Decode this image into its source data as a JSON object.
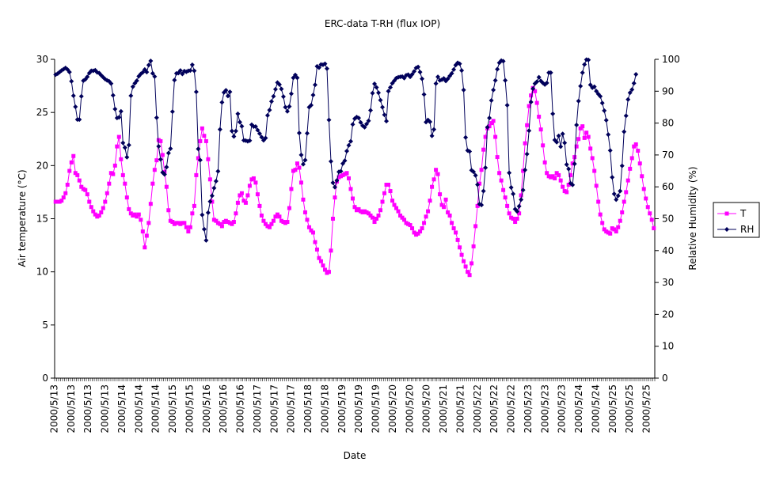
{
  "chart_data": {
    "type": "line",
    "title": "ERC-data T-RH (flux IOP)",
    "xlabel": "Date",
    "ylabel_left": "Air temperature (°C)",
    "ylabel_right": "Relative Humidity (%)",
    "ylim_left": [
      0,
      30
    ],
    "yticks_left": [
      "0",
      "5",
      "10",
      "15",
      "20",
      "25",
      "30"
    ],
    "ylim_right": [
      0,
      100
    ],
    "yticks_right": [
      "0",
      "10",
      "20",
      "30",
      "40",
      "50",
      "60",
      "70",
      "80",
      "90",
      "100"
    ],
    "x_tick_labels": [
      "2000/5/13",
      "2000/5/13",
      "2000/5/13",
      "2000/5/13",
      "2000/5/14",
      "2000/5/14",
      "2000/5/14",
      "2000/5/15",
      "2000/5/15",
      "2000/5/16",
      "2000/5/16",
      "2000/5/16",
      "2000/5/17",
      "2000/5/17",
      "2000/5/17",
      "2000/5/18",
      "2000/5/18",
      "2000/5/19",
      "2000/5/19",
      "2000/5/19",
      "2000/5/20",
      "2000/5/20",
      "2000/5/20",
      "2000/5/21",
      "2000/5/21",
      "2000/5/22",
      "2000/5/22",
      "2000/5/22",
      "2000/5/23",
      "2000/5/23",
      "2000/5/23",
      "2000/5/24",
      "2000/5/24",
      "2000/5/25",
      "2000/5/25",
      "2000/5/25"
    ],
    "grid": false,
    "legend_position": "right",
    "series": [
      {
        "name": "T",
        "axis": "left",
        "color": "#ff00ff",
        "marker": "square",
        "values": [
          16.6,
          16.6,
          16.6,
          16.7,
          17.0,
          17.4,
          18.2,
          19.5,
          20.3,
          20.9,
          19.3,
          19.1,
          18.6,
          18.0,
          17.8,
          17.7,
          17.3,
          16.6,
          16.1,
          15.7,
          15.4,
          15.2,
          15.3,
          15.6,
          16.0,
          16.6,
          17.4,
          18.3,
          19.3,
          19.2,
          20.0,
          21.8,
          22.7,
          20.6,
          19.1,
          18.3,
          17.0,
          15.9,
          15.5,
          15.3,
          15.4,
          15.2,
          15.4,
          14.9,
          13.8,
          12.3,
          13.4,
          14.6,
          16.4,
          18.3,
          19.6,
          20.5,
          22.4,
          22.3,
          21.0,
          19.4,
          18.0,
          15.8,
          14.8,
          14.7,
          14.5,
          14.6,
          14.6,
          14.5,
          14.6,
          14.6,
          14.2,
          13.8,
          14.2,
          15.5,
          16.2,
          19.1,
          20.7,
          22.3,
          23.5,
          22.8,
          22.3,
          20.6,
          18.7,
          16.6,
          14.9,
          14.8,
          14.6,
          14.5,
          14.3,
          14.7,
          14.8,
          14.7,
          14.6,
          14.5,
          14.7,
          15.5,
          16.5,
          17.2,
          17.4,
          16.7,
          16.5,
          17.2,
          18.1,
          18.7,
          18.8,
          18.4,
          17.3,
          16.2,
          15.3,
          14.8,
          14.5,
          14.3,
          14.2,
          14.5,
          14.8,
          15.2,
          15.4,
          15.2,
          14.8,
          14.7,
          14.6,
          14.7,
          16.0,
          17.8,
          19.5,
          19.6,
          20.2,
          19.8,
          18.4,
          16.8,
          15.6,
          14.9,
          14.2,
          13.9,
          13.7,
          12.8,
          12.1,
          11.3,
          11.0,
          10.6,
          10.2,
          9.9,
          10.0,
          12.0,
          15.0,
          17.0,
          18.5,
          18.9,
          19.0,
          19.1,
          19.2,
          19.3,
          18.8,
          17.8,
          16.9,
          16.1,
          15.8,
          15.9,
          15.7,
          15.6,
          15.7,
          15.6,
          15.5,
          15.3,
          15.1,
          14.7,
          15.0,
          15.3,
          15.8,
          16.6,
          17.4,
          18.2,
          18.2,
          17.6,
          16.7,
          16.3,
          16.0,
          15.7,
          15.3,
          15.1,
          14.9,
          14.6,
          14.5,
          14.4,
          14.1,
          13.7,
          13.5,
          13.6,
          13.8,
          14.1,
          14.6,
          15.2,
          15.7,
          16.7,
          18.0,
          18.7,
          19.6,
          19.2,
          17.3,
          16.3,
          16.1,
          16.8,
          15.6,
          15.3,
          14.6,
          14.1,
          13.7,
          13.0,
          12.3,
          11.6,
          11.0,
          10.5,
          10.0,
          9.7,
          10.8,
          12.4,
          14.3,
          16.2,
          18.3,
          19.6,
          21.5,
          22.7,
          23.5,
          23.7,
          24.0,
          24.2,
          22.7,
          20.8,
          19.3,
          18.6,
          17.7,
          17.0,
          16.2,
          15.5,
          15.1,
          15.0,
          14.7,
          15.0,
          15.5,
          17.2,
          19.5,
          22.1,
          23.8,
          25.6,
          26.6,
          27.3,
          27.0,
          25.9,
          24.6,
          23.4,
          21.9,
          20.3,
          19.3,
          19.0,
          18.9,
          19.0,
          18.8,
          19.3,
          19.1,
          18.6,
          18.0,
          17.6,
          17.5,
          18.2,
          19.1,
          20.2,
          20.8,
          21.8,
          22.5,
          23.5,
          23.7,
          22.6,
          23.1,
          22.7,
          21.6,
          20.7,
          19.5,
          18.1,
          16.6,
          15.4,
          14.6,
          14.0,
          13.8,
          13.7,
          13.6,
          14.1,
          14.0,
          13.8,
          14.2,
          14.8,
          15.6,
          16.6,
          17.5,
          18.6,
          19.7,
          20.7,
          21.8,
          22.0,
          21.4,
          20.2,
          19.0,
          17.8,
          16.9,
          16.1,
          15.5,
          14.9,
          14.1
        ]
      },
      {
        "name": "RH",
        "axis": "right",
        "color": "#00005a",
        "marker": "diamond",
        "values": [
          95.2,
          95.5,
          96.0,
          96.5,
          96.9,
          97.3,
          96.8,
          96.0,
          93.1,
          88.6,
          85.1,
          81.1,
          81.1,
          88.4,
          93.3,
          93.7,
          94.5,
          95.7,
          96.4,
          96.4,
          96.6,
          95.9,
          95.7,
          95.0,
          94.4,
          93.8,
          93.4,
          93.1,
          92.4,
          88.7,
          84.4,
          81.6,
          81.8,
          83.7,
          73.8,
          72.3,
          69.3,
          73.1,
          88.6,
          91.4,
          92.5,
          93.3,
          94.7,
          95.4,
          95.9,
          96.8,
          96.0,
          98.2,
          99.5,
          95.6,
          94.6,
          81.7,
          72.7,
          68.6,
          64.5,
          63.9,
          66.2,
          70.6,
          72.0,
          83.6,
          93.5,
          95.6,
          95.7,
          96.5,
          95.4,
          96.3,
          96.1,
          96.4,
          96.5,
          98.3,
          96.4,
          89.8,
          71.9,
          68.4,
          51.2,
          46.7,
          43.2,
          51.9,
          55.4,
          57.2,
          59.6,
          61.8,
          64.9,
          78.0,
          86.5,
          89.6,
          90.3,
          88.5,
          89.8,
          77.5,
          75.8,
          77.5,
          82.9,
          80.3,
          79.0,
          74.6,
          74.5,
          74.3,
          74.5,
          79.5,
          78.9,
          78.9,
          77.8,
          76.7,
          75.6,
          74.6,
          75.3,
          82.4,
          84.1,
          86.8,
          88.4,
          90.6,
          92.7,
          92.1,
          90.7,
          88.3,
          85.0,
          83.7,
          85.2,
          89.2,
          94.2,
          95.1,
          94.2,
          76.9,
          70.0,
          67.1,
          68.4,
          76.8,
          85.0,
          85.6,
          88.8,
          92.0,
          97.8,
          97.4,
          98.4,
          98.3,
          98.6,
          97.1,
          81.0,
          68.0,
          61.3,
          59.9,
          62.0,
          64.7,
          64.9,
          67.3,
          68.2,
          71.2,
          73.0,
          74.3,
          79.6,
          81.4,
          81.9,
          81.6,
          80.2,
          79.2,
          78.7,
          79.7,
          80.7,
          84.0,
          89.4,
          92.3,
          91.2,
          89.5,
          87.2,
          85.0,
          82.6,
          80.6,
          90.0,
          91.2,
          92.5,
          93.3,
          94.1,
          94.4,
          94.5,
          94.6,
          94.1,
          95.0,
          95.2,
          94.5,
          95.3,
          96.2,
          97.3,
          97.6,
          96.0,
          93.9,
          89.0,
          80.3,
          81.0,
          80.4,
          76.0,
          78.0,
          92.4,
          94.5,
          93.4,
          93.6,
          94.0,
          93.2,
          93.9,
          94.8,
          95.6,
          96.8,
          98.2,
          98.9,
          98.6,
          96.5,
          90.4,
          75.5,
          71.4,
          71.1,
          65.2,
          64.7,
          63.6,
          60.7,
          54.6,
          54.3,
          58.7,
          66.0,
          78.7,
          81.6,
          87.1,
          90.4,
          93.4,
          96.9,
          98.9,
          99.6,
          99.4,
          93.4,
          85.6,
          64.4,
          59.8,
          57.8,
          53.0,
          52.3,
          53.9,
          56.0,
          59.0,
          65.3,
          70.3,
          77.6,
          86.6,
          90.8,
          92.4,
          93.0,
          94.4,
          93.2,
          92.6,
          92.1,
          92.6,
          95.8,
          95.8,
          82.9,
          74.7,
          74.0,
          76.0,
          72.6,
          76.6,
          73.8,
          67.0,
          65.6,
          61.1,
          60.6,
          67.2,
          79.4,
          86.9,
          91.6,
          95.8,
          98.4,
          99.9,
          99.8,
          92.0,
          91.1,
          91.4,
          90.0,
          89.1,
          88.4,
          86.3,
          83.9,
          80.9,
          76.4,
          71.4,
          63.0,
          57.8,
          56.0,
          57.2,
          58.7,
          66.6,
          77.3,
          82.3,
          87.4,
          89.5,
          90.5,
          92.5,
          95.3
        ]
      }
    ]
  }
}
